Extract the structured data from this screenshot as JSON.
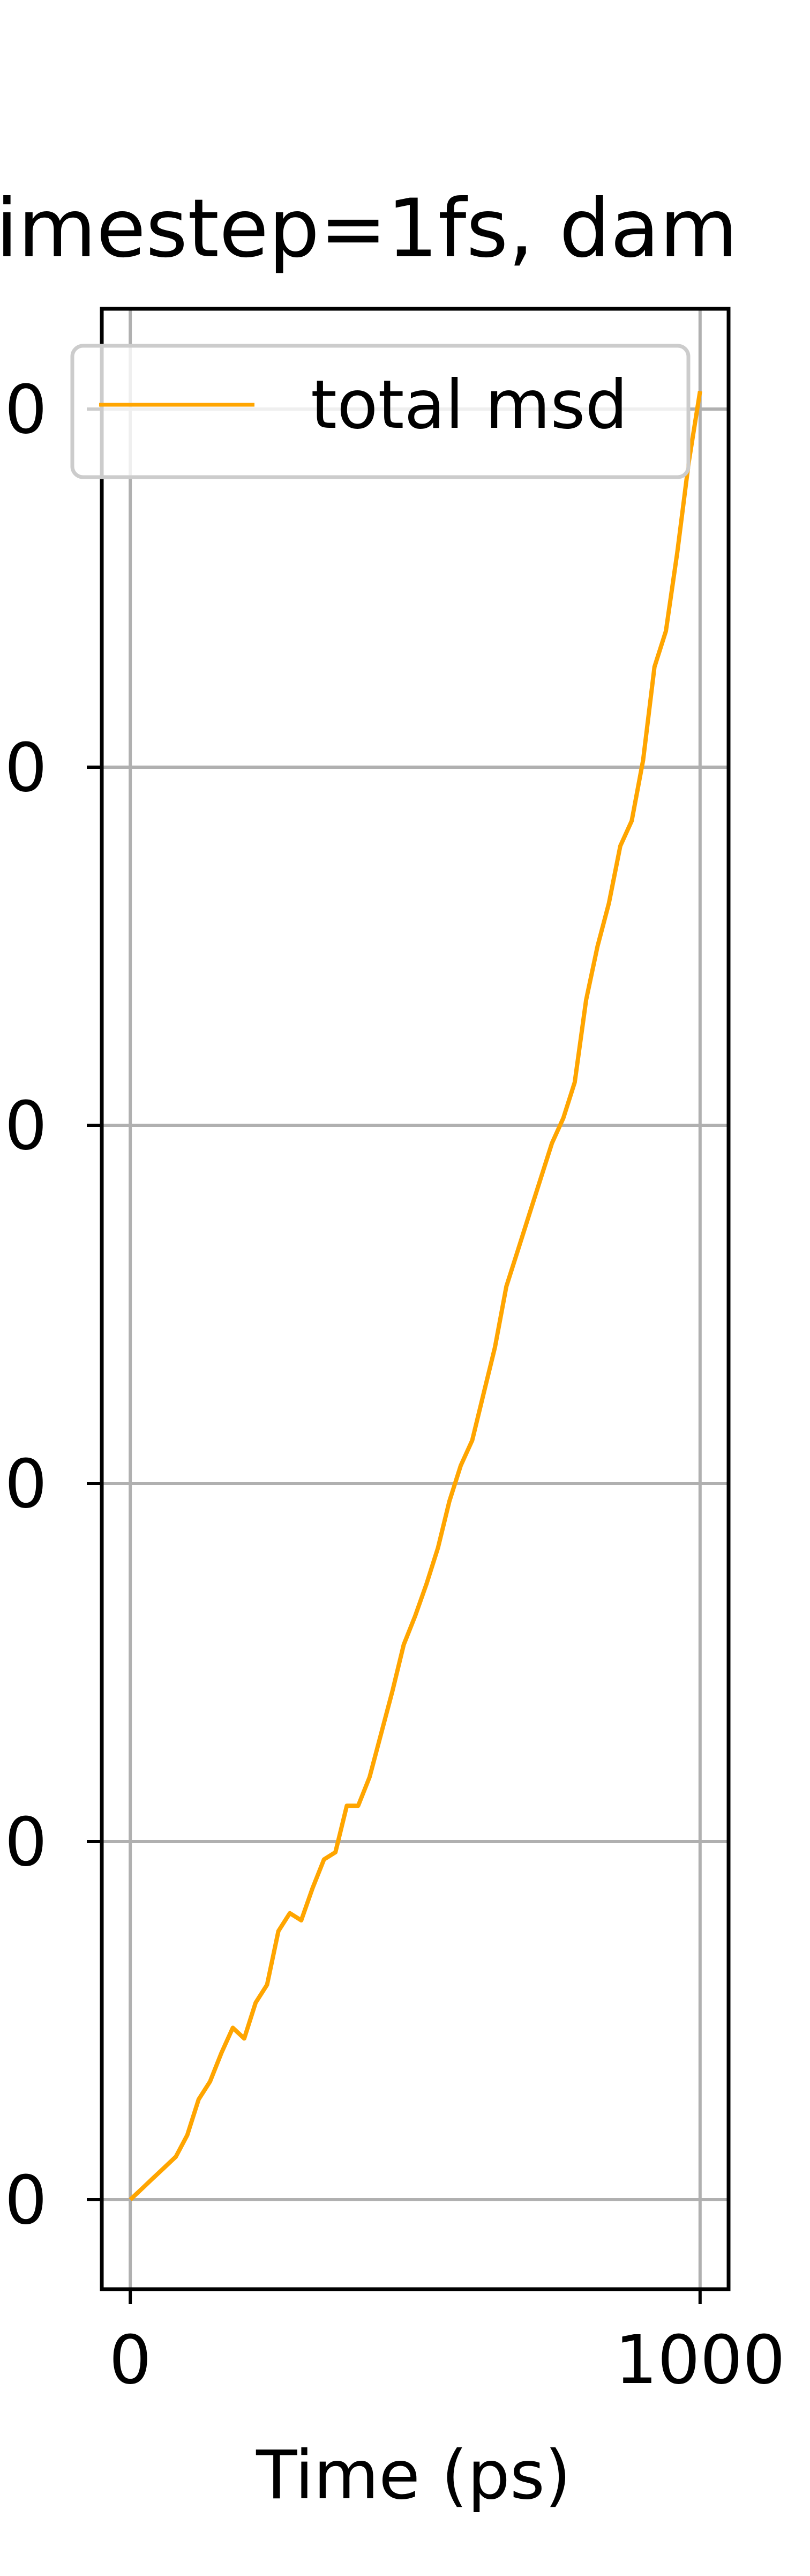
{
  "chart_data": {
    "type": "line",
    "title": "imestep=1fs, dam",
    "xlabel": "Time (ps)",
    "ylabel": "",
    "x_ticks": [
      "0",
      "1000"
    ],
    "y_ticks": [
      "0",
      "0",
      "0",
      "0",
      "0",
      "0"
    ],
    "xlim": [
      -50,
      1050
    ],
    "ylim": [
      -0.25,
      5.28
    ],
    "grid": true,
    "legend": {
      "position": "top-right",
      "entries": [
        "total msd"
      ]
    },
    "series": [
      {
        "name": "total msd",
        "color": "#FFA500",
        "x": [
          0,
          20,
          40,
          60,
          80,
          100,
          120,
          140,
          160,
          180,
          200,
          220,
          240,
          260,
          280,
          300,
          320,
          340,
          360,
          380,
          400,
          420,
          440,
          460,
          480,
          500,
          520,
          540,
          560,
          580,
          600,
          620,
          640,
          660,
          680,
          700,
          720,
          740,
          760,
          780,
          800,
          820,
          840,
          860,
          880,
          900,
          920,
          940,
          960,
          980,
          1000
        ],
        "y": [
          0,
          0.03,
          0.06,
          0.09,
          0.12,
          0.18,
          0.28,
          0.33,
          0.41,
          0.48,
          0.45,
          0.55,
          0.6,
          0.75,
          0.8,
          0.78,
          0.87,
          0.95,
          0.97,
          1.1,
          1.1,
          1.18,
          1.3,
          1.42,
          1.55,
          1.63,
          1.72,
          1.82,
          1.95,
          2.05,
          2.12,
          2.25,
          2.38,
          2.55,
          2.65,
          2.75,
          2.85,
          2.95,
          3.02,
          3.12,
          3.35,
          3.5,
          3.62,
          3.78,
          3.85,
          4.02,
          4.28,
          4.38,
          4.6,
          4.85,
          5.05
        ]
      }
    ]
  }
}
